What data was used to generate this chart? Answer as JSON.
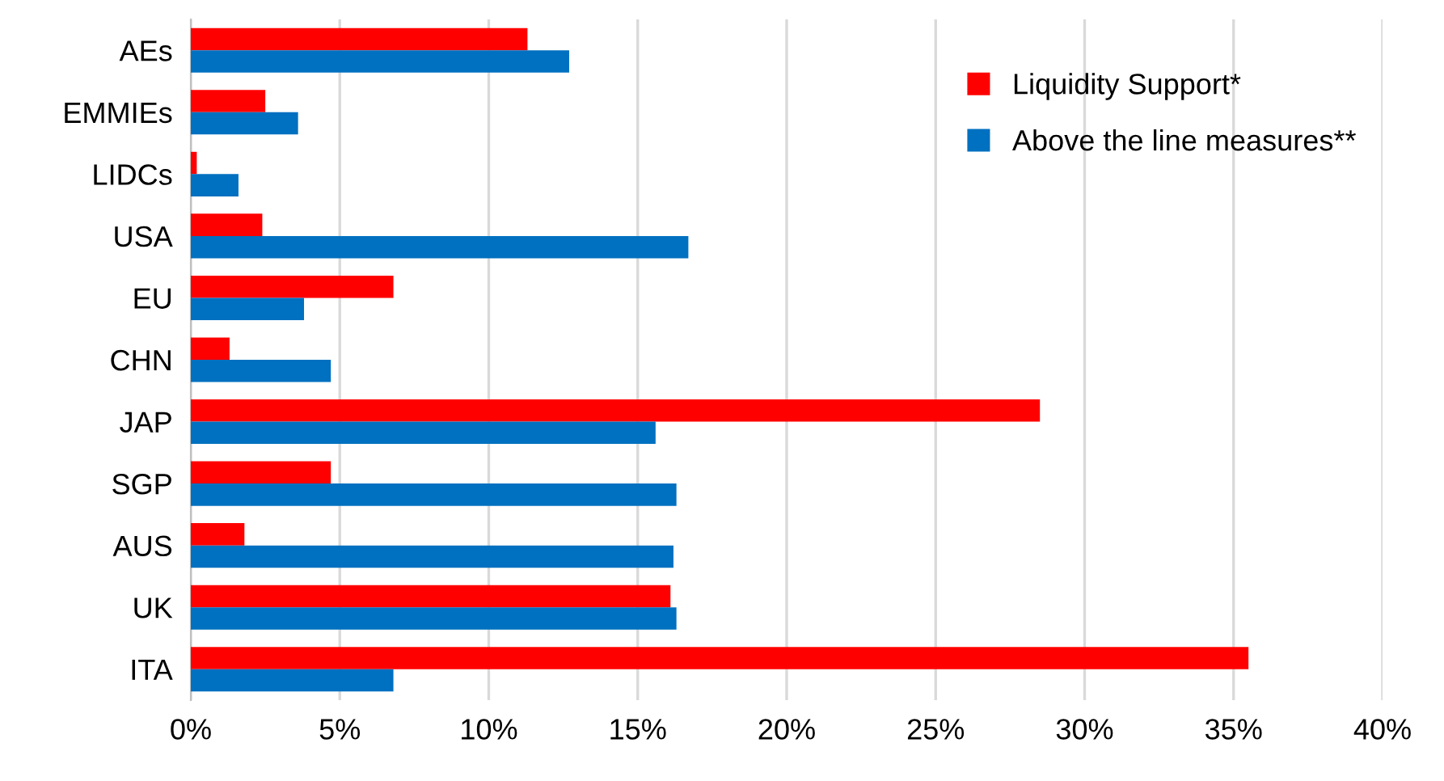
{
  "chart_data": {
    "type": "bar",
    "orientation": "horizontal",
    "categories": [
      "AEs",
      "EMMIEs",
      "LIDCs",
      "USA",
      "EU",
      "CHN",
      "JAP",
      "SGP",
      "AUS",
      "UK",
      "ITA"
    ],
    "series": [
      {
        "name": "Liquidity Support*",
        "color": "#ff0000",
        "values": [
          11.3,
          2.5,
          0.2,
          2.4,
          6.8,
          1.3,
          28.5,
          4.7,
          1.8,
          16.1,
          35.5
        ]
      },
      {
        "name": "Above the line measures**",
        "color": "#0070c0",
        "values": [
          12.7,
          3.6,
          1.6,
          16.7,
          3.8,
          4.7,
          15.6,
          16.3,
          16.2,
          16.3,
          6.8
        ]
      }
    ],
    "xlim": [
      0,
      40
    ],
    "xticks": [
      {
        "value": 0,
        "label": "0%"
      },
      {
        "value": 5,
        "label": "5%"
      },
      {
        "value": 10,
        "label": "10%"
      },
      {
        "value": 15,
        "label": "15%"
      },
      {
        "value": 20,
        "label": "20%"
      },
      {
        "value": 25,
        "label": "25%"
      },
      {
        "value": 30,
        "label": "30%"
      },
      {
        "value": 35,
        "label": "35%"
      },
      {
        "value": 40,
        "label": "40%"
      }
    ],
    "grid": "x",
    "legend": "top right"
  }
}
